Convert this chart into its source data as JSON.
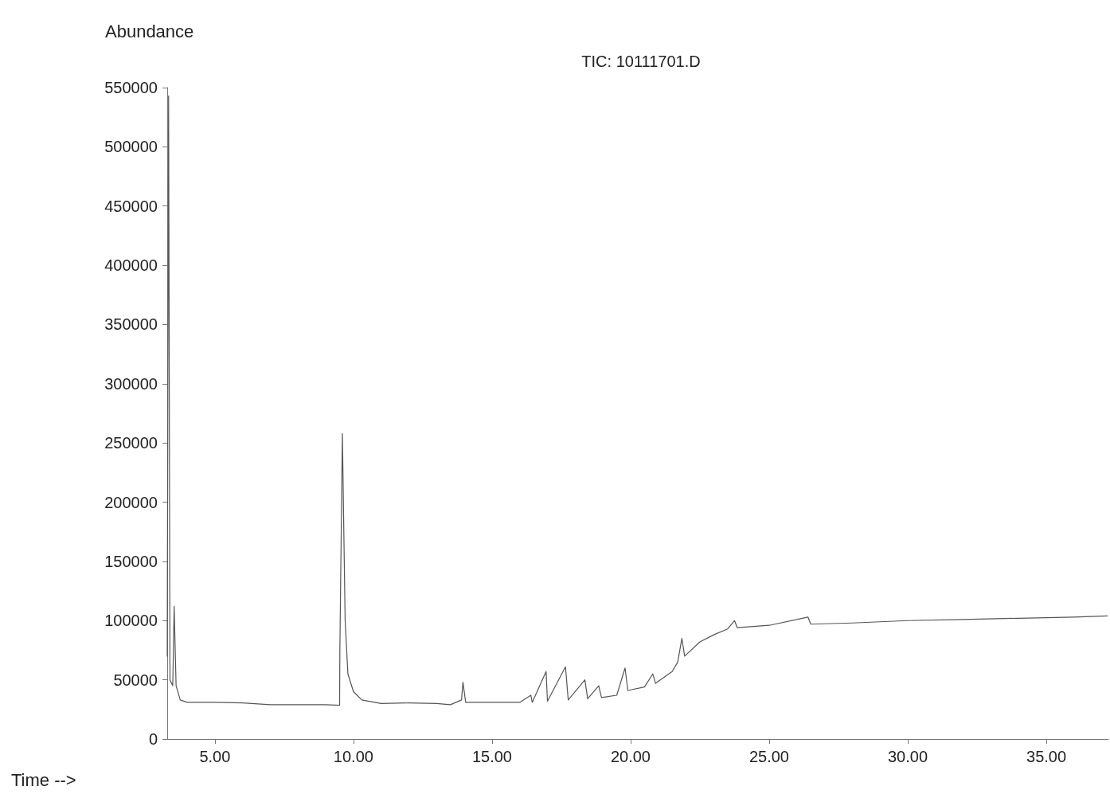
{
  "chart_data": {
    "type": "line",
    "title": "TIC: 10111701.D",
    "xlabel": "Time -->",
    "ylabel": "Abundance",
    "x": [
      3.28,
      3.33,
      3.38,
      3.48,
      3.53,
      3.6,
      3.75,
      4.0,
      5.0,
      6.0,
      7.0,
      8.0,
      9.0,
      9.5,
      9.51,
      9.6,
      9.7,
      9.8,
      10.0,
      10.3,
      11.0,
      12.0,
      13.0,
      13.5,
      13.9,
      13.95,
      14.05,
      15.0,
      16.0,
      16.4,
      16.45,
      16.95,
      17.0,
      17.65,
      17.75,
      18.35,
      18.45,
      18.85,
      18.95,
      19.5,
      19.8,
      19.9,
      20.5,
      20.8,
      20.9,
      21.5,
      21.7,
      21.85,
      21.95,
      22.5,
      23.0,
      23.5,
      23.75,
      23.85,
      25.0,
      26.4,
      26.5,
      28.0,
      30.0,
      32.0,
      34.0,
      36.0,
      37.2
    ],
    "series": [
      {
        "color": "#555555",
        "values": [
          70000,
          543000,
          50000,
          45000,
          112000,
          45000,
          33000,
          31000,
          31000,
          30500,
          29000,
          29000,
          29000,
          28500,
          76000,
          258000,
          100000,
          55000,
          40000,
          33000,
          30000,
          30500,
          30000,
          29000,
          33000,
          48000,
          31000,
          31000,
          31000,
          37000,
          31000,
          57000,
          32000,
          61000,
          33000,
          50000,
          34000,
          45000,
          35000,
          37000,
          60000,
          41000,
          44000,
          55000,
          47000,
          57000,
          65000,
          85000,
          70000,
          82000,
          88000,
          93000,
          100000,
          94000,
          96000,
          103000,
          97000,
          98000,
          100000,
          101000,
          102000,
          103000,
          104000
        ]
      }
    ],
    "xlim": [
      3.28,
      37.24
    ],
    "ylim": [
      0,
      550000
    ],
    "xticks": [
      {
        "value": 5,
        "label": "5.00"
      },
      {
        "value": 10,
        "label": "10.00"
      },
      {
        "value": 15,
        "label": "15.00"
      },
      {
        "value": 20,
        "label": "20.00"
      },
      {
        "value": 25,
        "label": "25.00"
      },
      {
        "value": 30,
        "label": "30.00"
      },
      {
        "value": 35,
        "label": "35.00"
      }
    ],
    "yticks": [
      0,
      50000,
      100000,
      150000,
      200000,
      250000,
      300000,
      350000,
      400000,
      450000,
      500000,
      550000
    ],
    "grid": false,
    "marker": "none",
    "line_style": "solid"
  }
}
